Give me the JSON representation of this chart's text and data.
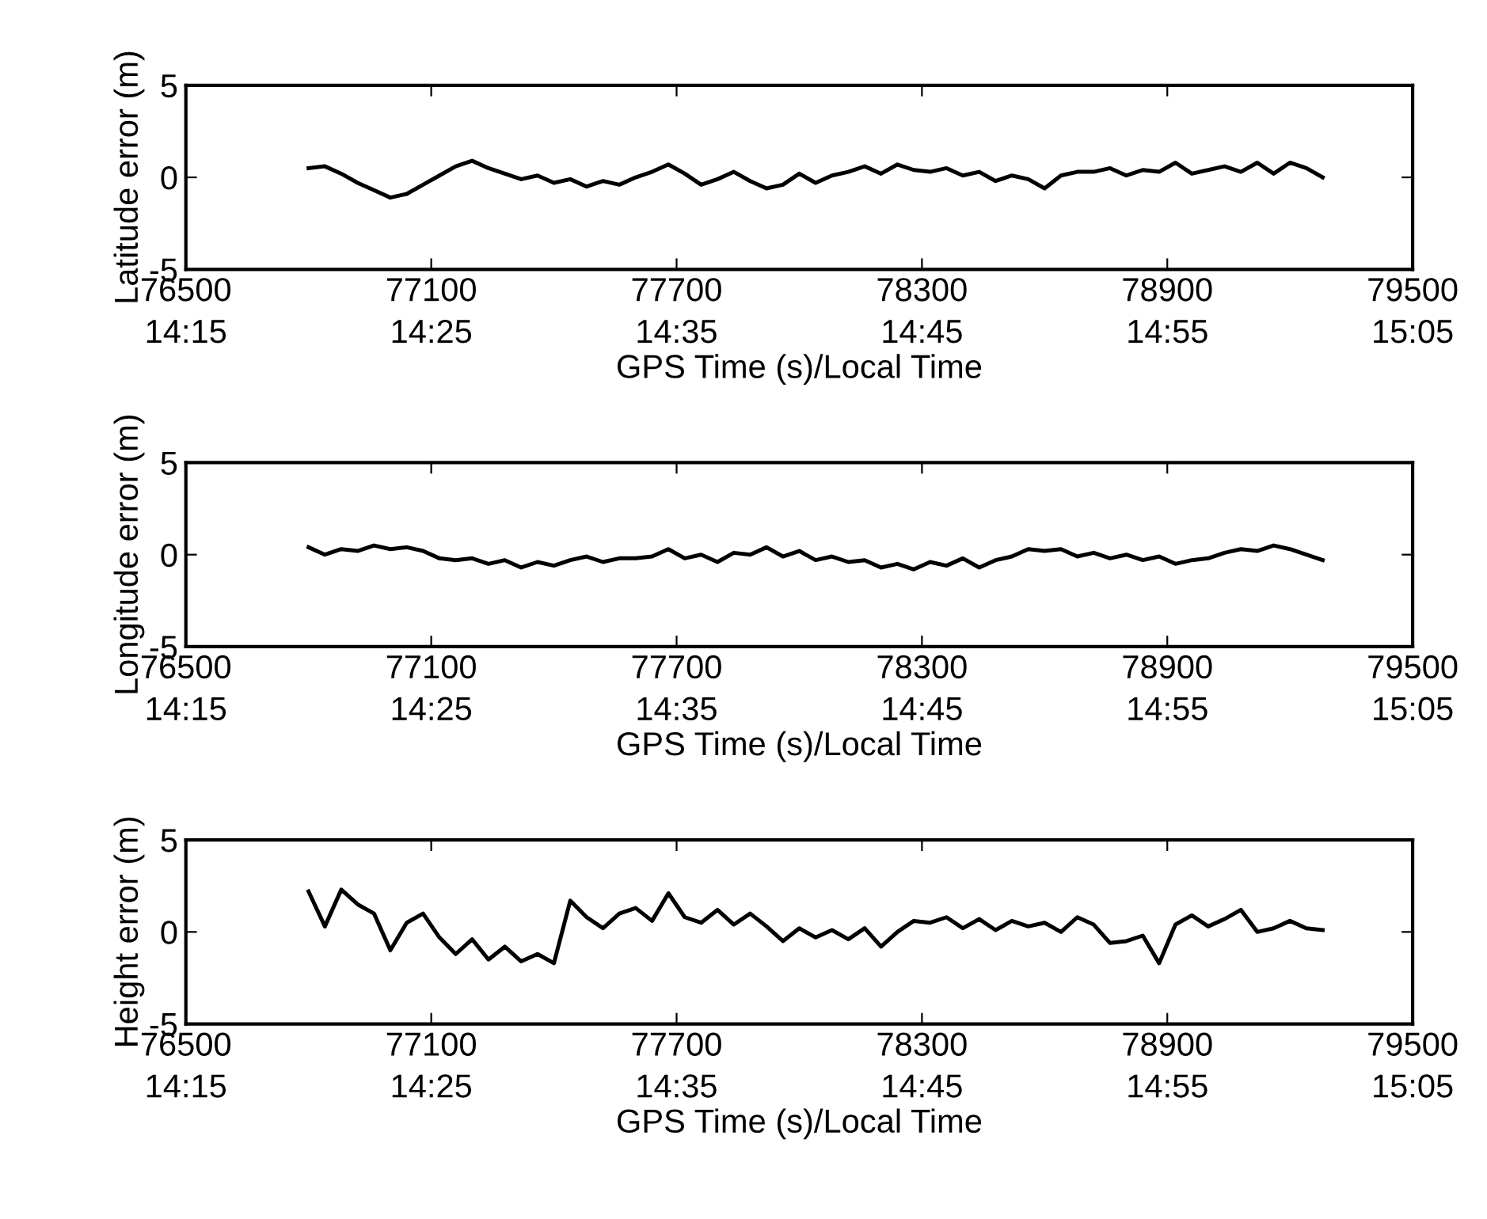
{
  "chart_data": [
    {
      "type": "line",
      "ylabel": "Latitude error (m)",
      "xlabel": "GPS Time (s)/Local Time",
      "xlim": [
        76500,
        79500
      ],
      "ylim": [
        -5,
        5
      ],
      "yticks": [
        -5,
        0,
        5
      ],
      "grid": false,
      "legend": false,
      "xticks": [
        76500,
        77100,
        77700,
        78300,
        78900,
        79500
      ],
      "x2lim": [
        14.25,
        15.0833
      ],
      "x2ticks": [
        {
          "value": 14.25,
          "label": "14:15"
        },
        {
          "value": 14.4167,
          "label": "14:25"
        },
        {
          "value": 14.5833,
          "label": "14:35"
        },
        {
          "value": 14.75,
          "label": "14:45"
        },
        {
          "value": 14.9167,
          "label": "14:55"
        },
        {
          "value": 15.0833,
          "label": "15:05"
        }
      ],
      "x": [
        76800,
        76840,
        76880,
        76920,
        76960,
        77000,
        77040,
        77080,
        77120,
        77160,
        77200,
        77240,
        77280,
        77320,
        77360,
        77400,
        77440,
        77480,
        77520,
        77560,
        77600,
        77640,
        77680,
        77720,
        77760,
        77800,
        77840,
        77880,
        77920,
        77960,
        78000,
        78040,
        78080,
        78120,
        78160,
        78200,
        78240,
        78280,
        78320,
        78360,
        78400,
        78440,
        78480,
        78520,
        78560,
        78600,
        78640,
        78680,
        78720,
        78760,
        78800,
        78840,
        78880,
        78920,
        78960,
        79000,
        79040,
        79080,
        79120,
        79160,
        79200,
        79240,
        79280
      ],
      "series": [
        {
          "color": "#000000",
          "values": [
            0.5,
            0.6,
            0.2,
            -0.3,
            -0.7,
            -1.1,
            -0.9,
            -0.4,
            0.1,
            0.6,
            0.9,
            0.5,
            0.2,
            -0.1,
            0.1,
            -0.3,
            -0.1,
            -0.5,
            -0.2,
            -0.4,
            0.0,
            0.3,
            0.7,
            0.2,
            -0.4,
            -0.1,
            0.3,
            -0.2,
            -0.6,
            -0.4,
            0.2,
            -0.3,
            0.1,
            0.3,
            0.6,
            0.2,
            0.7,
            0.4,
            0.3,
            0.5,
            0.1,
            0.3,
            -0.2,
            0.1,
            -0.1,
            -0.6,
            0.1,
            0.3,
            0.3,
            0.5,
            0.1,
            0.4,
            0.3,
            0.8,
            0.2,
            0.4,
            0.6,
            0.3,
            0.8,
            0.2,
            0.8,
            0.5,
            0.0
          ]
        }
      ]
    },
    {
      "type": "line",
      "ylabel": "Longitude error (m)",
      "xlabel": "GPS Time (s)/Local Time",
      "xlim": [
        76500,
        79500
      ],
      "ylim": [
        -5,
        5
      ],
      "yticks": [
        -5,
        0,
        5
      ],
      "grid": false,
      "legend": false,
      "xticks": [
        76500,
        77100,
        77700,
        78300,
        78900,
        79500
      ],
      "x2lim": [
        14.25,
        15.0833
      ],
      "x2ticks": [
        {
          "value": 14.25,
          "label": "14:15"
        },
        {
          "value": 14.4167,
          "label": "14:25"
        },
        {
          "value": 14.5833,
          "label": "14:35"
        },
        {
          "value": 14.75,
          "label": "14:45"
        },
        {
          "value": 14.9167,
          "label": "14:55"
        },
        {
          "value": 15.0833,
          "label": "15:05"
        }
      ],
      "x": [
        76800,
        76840,
        76880,
        76920,
        76960,
        77000,
        77040,
        77080,
        77120,
        77160,
        77200,
        77240,
        77280,
        77320,
        77360,
        77400,
        77440,
        77480,
        77520,
        77560,
        77600,
        77640,
        77680,
        77720,
        77760,
        77800,
        77840,
        77880,
        77920,
        77960,
        78000,
        78040,
        78080,
        78120,
        78160,
        78200,
        78240,
        78280,
        78320,
        78360,
        78400,
        78440,
        78480,
        78520,
        78560,
        78600,
        78640,
        78680,
        78720,
        78760,
        78800,
        78840,
        78880,
        78920,
        78960,
        79000,
        79040,
        79080,
        79120,
        79160,
        79200,
        79240,
        79280
      ],
      "series": [
        {
          "color": "#000000",
          "values": [
            0.4,
            0.0,
            0.3,
            0.2,
            0.5,
            0.3,
            0.4,
            0.2,
            -0.2,
            -0.3,
            -0.2,
            -0.5,
            -0.3,
            -0.7,
            -0.4,
            -0.6,
            -0.3,
            -0.1,
            -0.4,
            -0.2,
            -0.2,
            -0.1,
            0.3,
            -0.2,
            0.0,
            -0.4,
            0.1,
            0.0,
            0.4,
            -0.1,
            0.2,
            -0.3,
            -0.1,
            -0.4,
            -0.3,
            -0.7,
            -0.5,
            -0.8,
            -0.4,
            -0.6,
            -0.2,
            -0.7,
            -0.3,
            -0.1,
            0.3,
            0.2,
            0.3,
            -0.1,
            0.1,
            -0.2,
            0.0,
            -0.3,
            -0.1,
            -0.5,
            -0.3,
            -0.2,
            0.1,
            0.3,
            0.2,
            0.5,
            0.3,
            0.0,
            -0.3
          ]
        }
      ]
    },
    {
      "type": "line",
      "ylabel": "Height error (m)",
      "xlabel": "GPS Time (s)/Local Time",
      "xlim": [
        76500,
        79500
      ],
      "ylim": [
        -5,
        5
      ],
      "yticks": [
        -5,
        0,
        5
      ],
      "grid": false,
      "legend": false,
      "xticks": [
        76500,
        77100,
        77700,
        78300,
        78900,
        79500
      ],
      "x2lim": [
        14.25,
        15.0833
      ],
      "x2ticks": [
        {
          "value": 14.25,
          "label": "14:15"
        },
        {
          "value": 14.4167,
          "label": "14:25"
        },
        {
          "value": 14.5833,
          "label": "14:35"
        },
        {
          "value": 14.75,
          "label": "14:45"
        },
        {
          "value": 14.9167,
          "label": "14:55"
        },
        {
          "value": 15.0833,
          "label": "15:05"
        }
      ],
      "x": [
        76800,
        76840,
        76880,
        76920,
        76960,
        77000,
        77040,
        77080,
        77120,
        77160,
        77200,
        77240,
        77280,
        77320,
        77360,
        77400,
        77440,
        77480,
        77520,
        77560,
        77600,
        77640,
        77680,
        77720,
        77760,
        77800,
        77840,
        77880,
        77920,
        77960,
        78000,
        78040,
        78080,
        78120,
        78160,
        78200,
        78240,
        78280,
        78320,
        78360,
        78400,
        78440,
        78480,
        78520,
        78560,
        78600,
        78640,
        78680,
        78720,
        78760,
        78800,
        78840,
        78880,
        78920,
        78960,
        79000,
        79040,
        79080,
        79120,
        79160,
        79200,
        79240,
        79280
      ],
      "series": [
        {
          "color": "#000000",
          "values": [
            2.2,
            0.3,
            2.3,
            1.5,
            1.0,
            -1.0,
            0.5,
            1.0,
            -0.3,
            -1.2,
            -0.4,
            -1.5,
            -0.8,
            -1.6,
            -1.2,
            -1.7,
            1.7,
            0.8,
            0.2,
            1.0,
            1.3,
            0.6,
            2.1,
            0.8,
            0.5,
            1.2,
            0.4,
            1.0,
            0.3,
            -0.5,
            0.2,
            -0.3,
            0.1,
            -0.4,
            0.2,
            -0.8,
            0.0,
            0.6,
            0.5,
            0.8,
            0.2,
            0.7,
            0.1,
            0.6,
            0.3,
            0.5,
            0.0,
            0.8,
            0.4,
            -0.6,
            -0.5,
            -0.2,
            -1.7,
            0.4,
            0.9,
            0.3,
            0.7,
            1.2,
            0.0,
            0.2,
            0.6,
            0.2,
            0.1
          ]
        }
      ]
    }
  ]
}
